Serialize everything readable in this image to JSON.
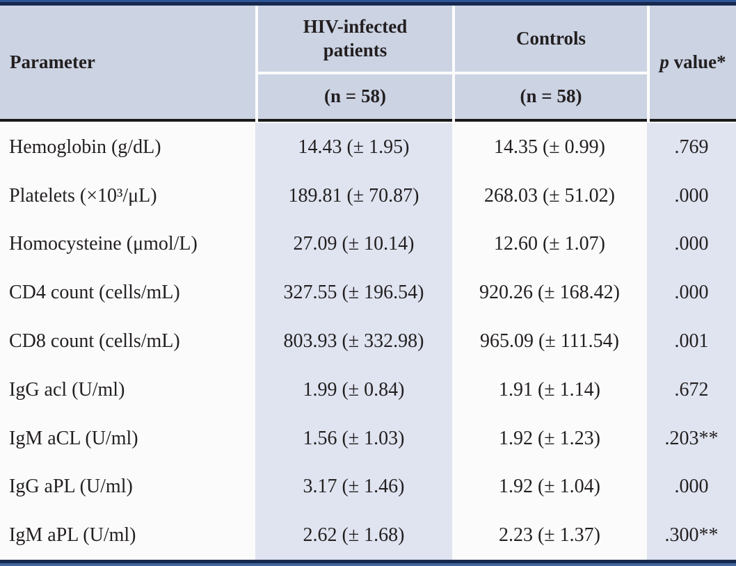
{
  "table": {
    "header": {
      "parameter": "Parameter",
      "group1_label": "HIV-infected patients",
      "group1_n": "(n = 58)",
      "group2_label": "Controls",
      "group2_n": "(n = 58)",
      "p_italic": "p",
      "p_rest": "value*"
    },
    "rows": [
      {
        "parameter": "Hemoglobin (g/dL)",
        "hiv": "14.43 (± 1.95)",
        "controls": "14.35 (± 0.99)",
        "p": ".769"
      },
      {
        "parameter": "Platelets (×10³/μL)",
        "hiv": "189.81 (± 70.87)",
        "controls": "268.03 (± 51.02)",
        "p": ".000"
      },
      {
        "parameter": "Homocysteine (μmol/L)",
        "hiv": "27.09 (± 10.14)",
        "controls": "12.60 (± 1.07)",
        "p": ".000"
      },
      {
        "parameter": "CD4 count (cells/mL)",
        "hiv": "327.55 (± 196.54)",
        "controls": "920.26 (± 168.42)",
        "p": ".000"
      },
      {
        "parameter": "CD8 count (cells/mL)",
        "hiv": "803.93 (± 332.98)",
        "controls": "965.09 (± 111.54)",
        "p": ".001"
      },
      {
        "parameter": "IgG acl (U/ml)",
        "hiv": "1.99 (± 0.84)",
        "controls": "1.91 (± 1.14)",
        "p": ".672"
      },
      {
        "parameter": "IgM aCL (U/ml)",
        "hiv": "1.56 (± 1.03)",
        "controls": "1.92 (± 1.23)",
        "p": ".203**"
      },
      {
        "parameter": "IgG aPL (U/ml)",
        "hiv": "3.17 (± 1.46)",
        "controls": "1.92 (± 1.04)",
        "p": ".000"
      },
      {
        "parameter": "IgM aPL (U/ml)",
        "hiv": "2.62 (± 1.68)",
        "controls": "2.23 (± 1.37)",
        "p": ".300**"
      }
    ],
    "colors": {
      "border_blue": "#2e5496",
      "border_navy": "#16294e",
      "header_bg": "#ccd3e3",
      "band_blue": "#dfe4f0",
      "body_bg": "#fbfbfb",
      "text": "#231f20",
      "header_rule": "#1a1a1a"
    }
  }
}
